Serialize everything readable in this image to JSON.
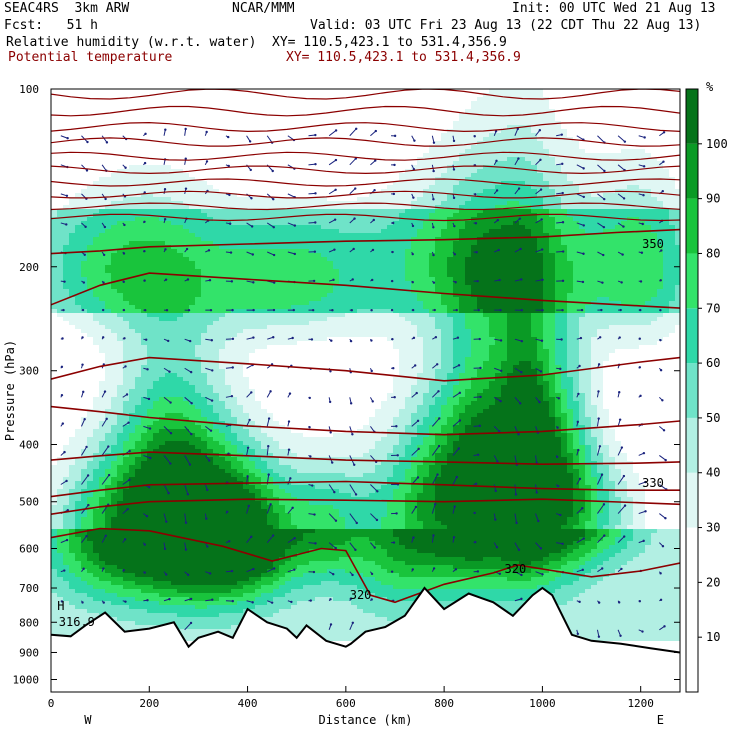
{
  "header": {
    "model": "SEAC4RS  3km ARW",
    "org": "NCAR/MMM",
    "init": "Init: 00 UTC Wed 21 Aug 13",
    "fcst": "Fcst:   51 h",
    "valid": "Valid: 03 UTC Fri 23 Aug 13 (22 CDT Thu 22 Aug 13)",
    "field1": "Relative humidity (w.r.t. water)",
    "xy1": "XY= 110.5,423.1 to 531.4,356.9",
    "field2": "Potential temperature",
    "xy2": "XY= 110.5,423.1 to 531.4,356.9"
  },
  "colors": {
    "theta": "#8b0000",
    "wind": "#1a237e",
    "terrain": "#000000",
    "rh_levels": [
      "#ffffff",
      "#e0f7f4",
      "#b2efe3",
      "#6fe3c8",
      "#2fd8a8",
      "#33e36a",
      "#19c43c",
      "#0a9a25",
      "#05731a"
    ]
  },
  "chart_data": {
    "type": "heatmap",
    "title": "Relative humidity (w.r.t. water) / Potential temperature",
    "xlabel": "Distance (km)",
    "ylabel": "Pressure (hPa)",
    "xlim": [
      0,
      1280
    ],
    "ylim": [
      100,
      1050
    ],
    "y_scale": "log",
    "xticks": [
      0,
      200,
      400,
      600,
      800,
      1000,
      1200
    ],
    "yticks": [
      100,
      200,
      300,
      400,
      500,
      600,
      700,
      800,
      900,
      1000
    ],
    "x_end_labels": {
      "left": "W",
      "right": "E"
    },
    "colorbar": {
      "unit": "%",
      "ticks": [
        10,
        20,
        30,
        40,
        50,
        60,
        70,
        80,
        90,
        100
      ],
      "range": [
        0,
        110
      ]
    },
    "theta_contours": [
      {
        "label": "350",
        "x": [
          0,
          100,
          200,
          400,
          600,
          800,
          1000,
          1150,
          1280
        ],
        "p": [
          190,
          188,
          185,
          183,
          181,
          180,
          178,
          175,
          173
        ]
      },
      {
        "label": "",
        "x": [
          0,
          100,
          200,
          400,
          600,
          800,
          1000,
          1200,
          1280
        ],
        "p": [
          232,
          215,
          205,
          210,
          215,
          222,
          228,
          233,
          235
        ]
      },
      {
        "label": "",
        "x": [
          0,
          100,
          200,
          400,
          600,
          800,
          1000,
          1200,
          1280
        ],
        "p": [
          310,
          295,
          285,
          292,
          300,
          312,
          305,
          290,
          285
        ]
      },
      {
        "label": "",
        "x": [
          0,
          100,
          200,
          400,
          600,
          800,
          1000,
          1200,
          1280
        ],
        "p": [
          345,
          352,
          360,
          372,
          380,
          385,
          380,
          370,
          365
        ]
      },
      {
        "label": "",
        "x": [
          0,
          100,
          200,
          400,
          600,
          800,
          1000,
          1200,
          1280
        ],
        "p": [
          425,
          418,
          412,
          418,
          425,
          428,
          432,
          430,
          428
        ]
      },
      {
        "label": "330",
        "x": [
          0,
          100,
          200,
          400,
          600,
          800,
          1000,
          1150,
          1280
        ],
        "p": [
          490,
          478,
          468,
          465,
          462,
          468,
          475,
          478,
          478
        ]
      },
      {
        "label": "",
        "x": [
          0,
          100,
          200,
          400,
          600,
          800,
          1000,
          1200,
          1280
        ],
        "p": [
          525,
          510,
          500,
          495,
          497,
          500,
          495,
          502,
          505
        ]
      },
      {
        "label": "320",
        "x": [
          0,
          100,
          200,
          350,
          450,
          550,
          600,
          650,
          700,
          800,
          900,
          950,
          1000,
          1100,
          1200,
          1280
        ],
        "p": [
          575,
          555,
          560,
          595,
          630,
          600,
          605,
          720,
          740,
          690,
          660,
          640,
          650,
          670,
          655,
          635
        ]
      }
    ],
    "theta_labels": [
      {
        "text": "350",
        "x": 1225,
        "p": 183
      },
      {
        "text": "330",
        "x": 1225,
        "p": 465
      },
      {
        "text": "320",
        "x": 945,
        "p": 650
      },
      {
        "text": "320",
        "x": 630,
        "p": 720
      }
    ],
    "terrain_marker": {
      "text": "H",
      "value": "316.9",
      "x": 20,
      "p": 780
    },
    "terrain_pressure": {
      "x": [
        0,
        40,
        70,
        110,
        150,
        200,
        250,
        280,
        300,
        340,
        370,
        400,
        440,
        480,
        500,
        520,
        560,
        600,
        610,
        640,
        680,
        720,
        760,
        800,
        850,
        880,
        900,
        940,
        980,
        1000,
        1020,
        1060,
        1100,
        1160,
        1220,
        1280
      ],
      "p": [
        840,
        845,
        810,
        770,
        830,
        820,
        800,
        880,
        850,
        830,
        850,
        760,
        800,
        820,
        850,
        810,
        860,
        880,
        870,
        830,
        815,
        780,
        700,
        760,
        715,
        730,
        740,
        780,
        720,
        700,
        720,
        840,
        860,
        870,
        885,
        900
      ]
    }
  }
}
